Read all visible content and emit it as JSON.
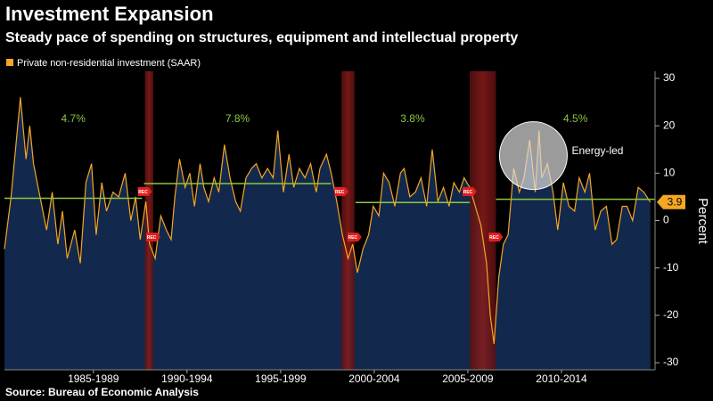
{
  "chart_data": {
    "type": "area",
    "title": "Investment Expansion",
    "subtitle": "Steady pace of spending on structures, equipment and intellectual property",
    "y_label": "Percent",
    "source": "Source: Bureau of Economic Analysis",
    "x": [
      1982.75,
      1983.1,
      1983.6,
      1983.9,
      1984.1,
      1984.3,
      1984.65,
      1985.0,
      1985.3,
      1985.6,
      1985.85,
      1986.1,
      1986.5,
      1986.8,
      1987.1,
      1987.4,
      1987.65,
      1987.95,
      1988.2,
      1988.55,
      1988.85,
      1989.2,
      1989.5,
      1989.75,
      1990.0,
      1990.3,
      1990.5,
      1990.8,
      1991.1,
      1991.4,
      1991.65,
      1991.85,
      1992.1,
      1992.4,
      1992.65,
      1992.9,
      1993.2,
      1993.4,
      1993.65,
      1993.95,
      1994.2,
      1994.5,
      1994.8,
      1995.1,
      1995.35,
      1995.65,
      1995.95,
      1996.2,
      1996.5,
      1996.8,
      1997.1,
      1997.35,
      1997.65,
      1997.95,
      1998.2,
      1998.5,
      1998.8,
      1999.1,
      1999.4,
      1999.6,
      1999.95,
      2000.2,
      2000.5,
      2000.8,
      2001.1,
      2001.35,
      2001.6,
      2001.9,
      2002.2,
      2002.45,
      2002.75,
      2003.0,
      2003.3,
      2003.6,
      2003.9,
      2004.1,
      2004.4,
      2004.7,
      2005.0,
      2005.3,
      2005.6,
      2005.9,
      2006.2,
      2006.5,
      2006.75,
      2007.05,
      2007.3,
      2007.6,
      2007.9,
      2008.2,
      2008.5,
      2008.7,
      2008.9,
      2009.15,
      2009.4,
      2009.65,
      2009.95,
      2010.25,
      2010.5,
      2010.8,
      2011.1,
      2011.3,
      2011.45,
      2011.75,
      2012.05,
      2012.3,
      2012.6,
      2012.9,
      2013.2,
      2013.45,
      2013.75,
      2014.0,
      2014.3,
      2014.6,
      2014.9,
      2015.2,
      2015.45,
      2015.75,
      2016.0,
      2016.3,
      2016.6,
      2016.9,
      2017.25
    ],
    "series": [
      {
        "name": "Private non-residential investment (SAAR)",
        "color": "#f5a623",
        "values": [
          -6,
          5,
          26,
          13,
          20,
          12,
          5,
          -2,
          6,
          -5,
          2,
          -8,
          -2,
          -9,
          8,
          12,
          -3,
          8,
          2,
          6,
          5,
          10,
          0,
          5,
          -4,
          4,
          -5,
          -8,
          1,
          -2,
          -4,
          5,
          13,
          7,
          10,
          3,
          12,
          7,
          4,
          9,
          6,
          16,
          9,
          4,
          2,
          9,
          11,
          12,
          9,
          11,
          9,
          19,
          6,
          14,
          7,
          11,
          9,
          12,
          6,
          11,
          14,
          10,
          4,
          -3,
          -8,
          -5,
          -11,
          -6,
          -3,
          3,
          1,
          10,
          8,
          3,
          10,
          11,
          5,
          6,
          9,
          3,
          15,
          4,
          7,
          3,
          8,
          6,
          9,
          7,
          3,
          -1,
          -9,
          -20,
          -26,
          -12,
          -5,
          -3,
          11,
          6,
          9,
          17,
          6,
          19,
          9,
          12,
          6,
          -2,
          8,
          3,
          2,
          9,
          6,
          10,
          -2,
          2,
          3,
          -5,
          -4,
          3,
          3,
          0,
          7,
          6,
          3.9
        ]
      }
    ],
    "area_color": "#12294d",
    "xlim": [
      1982.75,
      2017.5
    ],
    "ylim": [
      -31.5,
      31.5
    ],
    "yticks": [
      -30,
      -20,
      -10,
      0,
      10,
      20,
      30
    ],
    "xticks": [
      {
        "value": 1987.5,
        "label": "1985-1989"
      },
      {
        "value": 1992.5,
        "label": "1990-1994"
      },
      {
        "value": 1997.5,
        "label": "1995-1999"
      },
      {
        "value": 2002.5,
        "label": "2000-2004"
      },
      {
        "value": 2007.5,
        "label": "2005-2009"
      },
      {
        "value": 2012.5,
        "label": "2010-2014"
      }
    ],
    "recessions": [
      [
        1990.25,
        1990.7
      ],
      [
        2000.75,
        2001.45
      ],
      [
        2007.6,
        2009.0
      ]
    ],
    "recession_label": "REC",
    "averages": [
      {
        "start": 1982.75,
        "end": 1990.1,
        "value": 4.7,
        "label": "4.7%"
      },
      {
        "start": 1990.2,
        "end": 2000.2,
        "value": 7.8,
        "label": "7.8%"
      },
      {
        "start": 2001.5,
        "end": 2007.6,
        "value": 3.8,
        "label": "3.8%"
      },
      {
        "start": 2009.0,
        "end": 2017.5,
        "value": 4.5,
        "label": "4.5%"
      }
    ],
    "average_color": "#8dc63f",
    "annotation": {
      "label": "Energy-led",
      "x": 2011.0,
      "y": 13.7
    }
  }
}
